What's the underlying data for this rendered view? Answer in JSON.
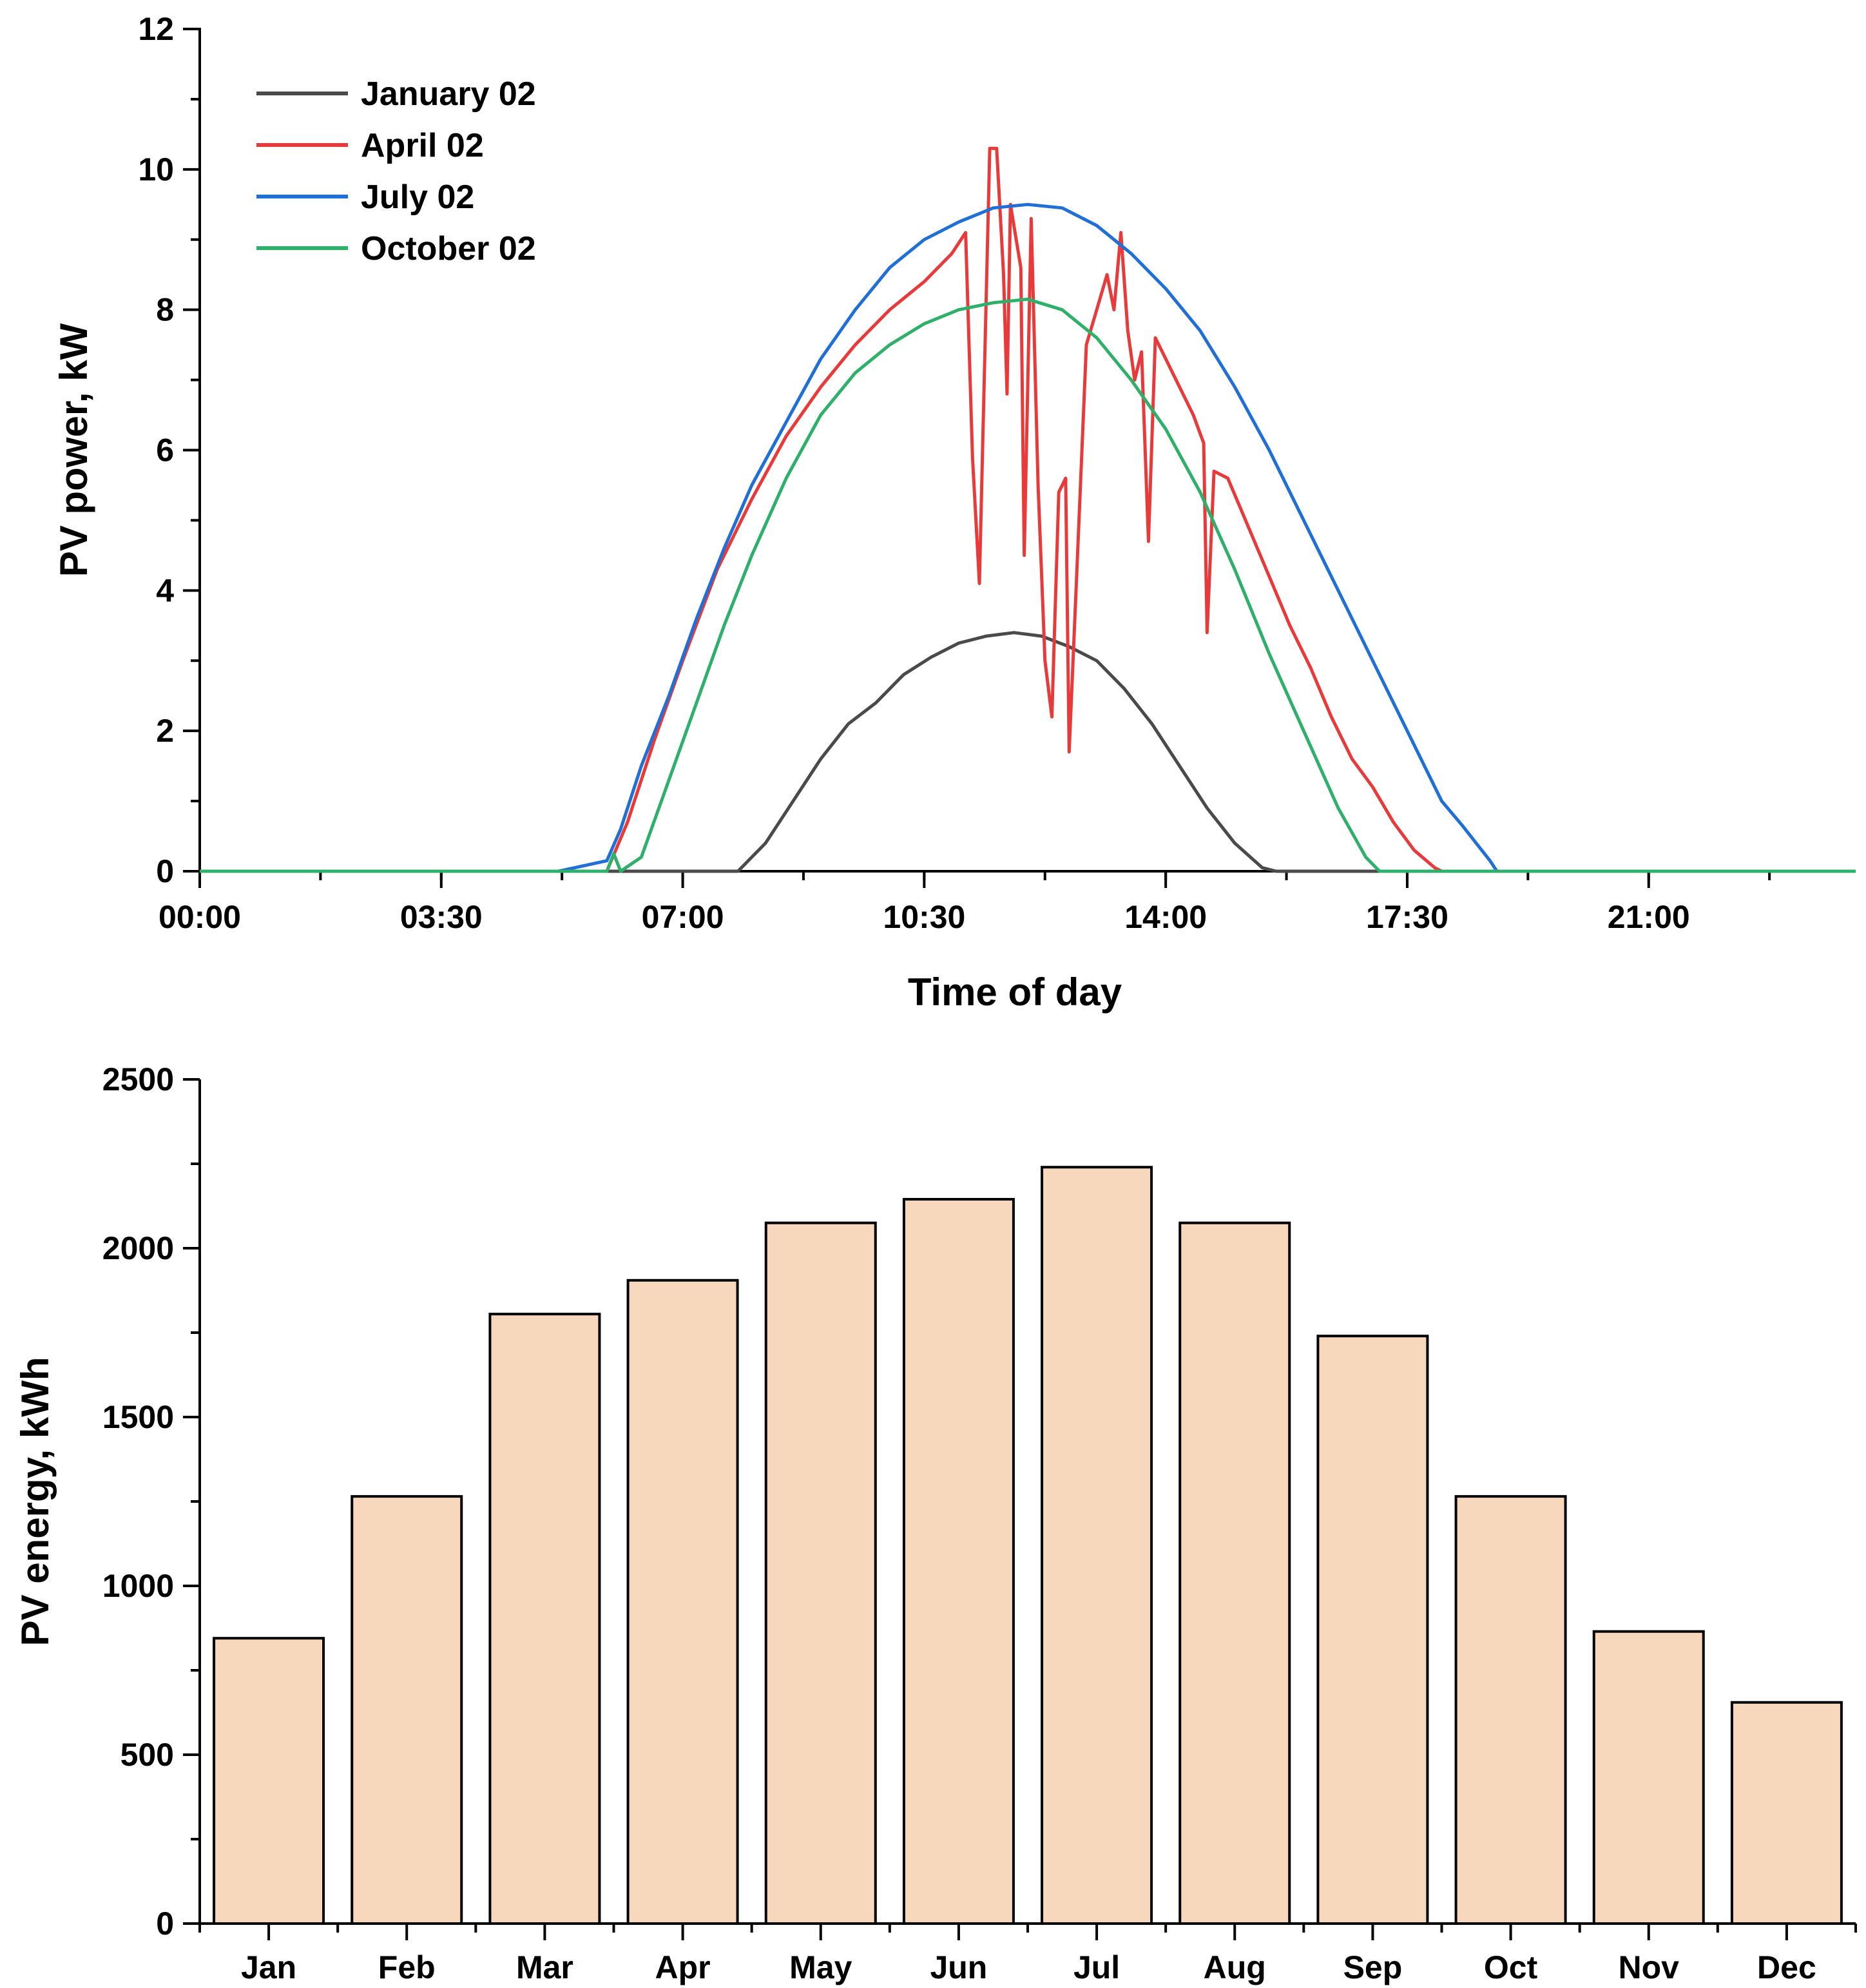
{
  "chart_data": [
    {
      "type": "line",
      "xlabel": "Time of day",
      "ylabel": "PV power, kW",
      "xlim": [
        0,
        24
      ],
      "ylim": [
        0,
        12
      ],
      "x_ticks": [
        {
          "value": 0,
          "label": "00:00"
        },
        {
          "value": 3.5,
          "label": "03:30"
        },
        {
          "value": 7,
          "label": "07:00"
        },
        {
          "value": 10.5,
          "label": "10:30"
        },
        {
          "value": 14,
          "label": "14:00"
        },
        {
          "value": 17.5,
          "label": "17:30"
        },
        {
          "value": 21,
          "label": "21:00"
        }
      ],
      "y_ticks": [
        {
          "value": 0,
          "label": "0"
        },
        {
          "value": 2,
          "label": "2"
        },
        {
          "value": 4,
          "label": "4"
        },
        {
          "value": 6,
          "label": "6"
        },
        {
          "value": 8,
          "label": "8"
        },
        {
          "value": 10,
          "label": "10"
        },
        {
          "value": 12,
          "label": "12"
        }
      ],
      "legend_position": "top-left",
      "series": [
        {
          "name": "January 02",
          "color": "#4a4a4a",
          "points": [
            [
              0,
              0
            ],
            [
              7.8,
              0
            ],
            [
              8.2,
              0.4
            ],
            [
              8.6,
              1.0
            ],
            [
              9.0,
              1.6
            ],
            [
              9.4,
              2.1
            ],
            [
              9.8,
              2.4
            ],
            [
              10.2,
              2.8
            ],
            [
              10.6,
              3.05
            ],
            [
              11.0,
              3.25
            ],
            [
              11.4,
              3.35
            ],
            [
              11.8,
              3.4
            ],
            [
              12.2,
              3.35
            ],
            [
              12.6,
              3.2
            ],
            [
              13.0,
              3.0
            ],
            [
              13.4,
              2.6
            ],
            [
              13.8,
              2.1
            ],
            [
              14.2,
              1.5
            ],
            [
              14.6,
              0.9
            ],
            [
              15.0,
              0.4
            ],
            [
              15.4,
              0.05
            ],
            [
              15.6,
              0
            ],
            [
              24,
              0
            ]
          ]
        },
        {
          "name": "April 02",
          "color": "#e83a3a",
          "points": [
            [
              0,
              0
            ],
            [
              5.9,
              0
            ],
            [
              6.2,
              0.7
            ],
            [
              6.6,
              1.9
            ],
            [
              7.0,
              3.0
            ],
            [
              7.5,
              4.3
            ],
            [
              8.0,
              5.3
            ],
            [
              8.5,
              6.2
            ],
            [
              9.0,
              6.9
            ],
            [
              9.5,
              7.5
            ],
            [
              10.0,
              8.0
            ],
            [
              10.5,
              8.4
            ],
            [
              10.9,
              8.8
            ],
            [
              11.1,
              9.1
            ],
            [
              11.2,
              5.9
            ],
            [
              11.3,
              4.1
            ],
            [
              11.45,
              10.3
            ],
            [
              11.55,
              10.3
            ],
            [
              11.65,
              8.5
            ],
            [
              11.7,
              6.8
            ],
            [
              11.75,
              9.5
            ],
            [
              11.9,
              8.6
            ],
            [
              11.95,
              4.5
            ],
            [
              12.05,
              9.3
            ],
            [
              12.15,
              5.5
            ],
            [
              12.25,
              3.0
            ],
            [
              12.35,
              2.2
            ],
            [
              12.45,
              5.4
            ],
            [
              12.55,
              5.6
            ],
            [
              12.6,
              1.7
            ],
            [
              12.7,
              4.0
            ],
            [
              12.85,
              7.5
            ],
            [
              13.0,
              8.0
            ],
            [
              13.15,
              8.5
            ],
            [
              13.25,
              8.0
            ],
            [
              13.35,
              9.1
            ],
            [
              13.45,
              7.7
            ],
            [
              13.55,
              7.0
            ],
            [
              13.65,
              7.4
            ],
            [
              13.75,
              4.7
            ],
            [
              13.85,
              7.6
            ],
            [
              14.0,
              7.3
            ],
            [
              14.2,
              6.9
            ],
            [
              14.4,
              6.5
            ],
            [
              14.55,
              6.1
            ],
            [
              14.6,
              3.4
            ],
            [
              14.7,
              5.7
            ],
            [
              14.9,
              5.6
            ],
            [
              15.2,
              4.9
            ],
            [
              15.5,
              4.2
            ],
            [
              15.8,
              3.5
            ],
            [
              16.1,
              2.9
            ],
            [
              16.4,
              2.2
            ],
            [
              16.7,
              1.6
            ],
            [
              17.0,
              1.2
            ],
            [
              17.3,
              0.7
            ],
            [
              17.6,
              0.3
            ],
            [
              17.9,
              0.05
            ],
            [
              18.0,
              0
            ],
            [
              24,
              0
            ]
          ]
        },
        {
          "name": "July 02",
          "color": "#1f6fd6",
          "points": [
            [
              0,
              0
            ],
            [
              5.2,
              0
            ],
            [
              5.9,
              0.15
            ],
            [
              6.1,
              0.6
            ],
            [
              6.4,
              1.5
            ],
            [
              6.8,
              2.5
            ],
            [
              7.2,
              3.6
            ],
            [
              7.6,
              4.6
            ],
            [
              8.0,
              5.5
            ],
            [
              8.5,
              6.4
            ],
            [
              9.0,
              7.3
            ],
            [
              9.5,
              8.0
            ],
            [
              10.0,
              8.6
            ],
            [
              10.5,
              9.0
            ],
            [
              11.0,
              9.25
            ],
            [
              11.5,
              9.45
            ],
            [
              12.0,
              9.5
            ],
            [
              12.5,
              9.45
            ],
            [
              13.0,
              9.2
            ],
            [
              13.5,
              8.8
            ],
            [
              14.0,
              8.3
            ],
            [
              14.5,
              7.7
            ],
            [
              15.0,
              6.9
            ],
            [
              15.5,
              6.0
            ],
            [
              16.0,
              5.0
            ],
            [
              16.5,
              4.0
            ],
            [
              17.0,
              3.0
            ],
            [
              17.5,
              2.0
            ],
            [
              18.0,
              1.0
            ],
            [
              18.3,
              0.65
            ],
            [
              18.5,
              0.4
            ],
            [
              18.7,
              0.15
            ],
            [
              18.8,
              0
            ],
            [
              24,
              0
            ]
          ]
        },
        {
          "name": "October 02",
          "color": "#2fb06a",
          "points": [
            [
              0,
              0
            ],
            [
              5.9,
              0
            ],
            [
              6.0,
              0.25
            ],
            [
              6.1,
              0
            ],
            [
              6.4,
              0.2
            ],
            [
              6.8,
              1.3
            ],
            [
              7.2,
              2.4
            ],
            [
              7.6,
              3.5
            ],
            [
              8.0,
              4.5
            ],
            [
              8.5,
              5.6
            ],
            [
              9.0,
              6.5
            ],
            [
              9.5,
              7.1
            ],
            [
              10.0,
              7.5
            ],
            [
              10.5,
              7.8
            ],
            [
              11.0,
              8.0
            ],
            [
              11.5,
              8.1
            ],
            [
              12.0,
              8.15
            ],
            [
              12.5,
              8.0
            ],
            [
              13.0,
              7.6
            ],
            [
              13.5,
              7.0
            ],
            [
              14.0,
              6.3
            ],
            [
              14.5,
              5.4
            ],
            [
              15.0,
              4.3
            ],
            [
              15.5,
              3.1
            ],
            [
              16.0,
              2.0
            ],
            [
              16.5,
              0.9
            ],
            [
              16.9,
              0.2
            ],
            [
              17.1,
              0
            ],
            [
              24,
              0
            ]
          ]
        }
      ]
    },
    {
      "type": "bar",
      "xlabel": "",
      "ylabel": "PV energy, kWh",
      "ylim": [
        0,
        2500
      ],
      "y_ticks": [
        {
          "value": 0,
          "label": "0"
        },
        {
          "value": 500,
          "label": "500"
        },
        {
          "value": 1000,
          "label": "1000"
        },
        {
          "value": 1500,
          "label": "1500"
        },
        {
          "value": 2000,
          "label": "2000"
        },
        {
          "value": 2500,
          "label": "2500"
        }
      ],
      "categories": [
        "Jan",
        "Feb",
        "Mar",
        "Apr",
        "May",
        "Jun",
        "Jul",
        "Aug",
        "Sep",
        "Oct",
        "Nov",
        "Dec"
      ],
      "values": [
        845,
        1265,
        1805,
        1905,
        2075,
        2145,
        2240,
        2075,
        1740,
        1265,
        865,
        655
      ],
      "bar_color": "#f8d8bc"
    }
  ]
}
